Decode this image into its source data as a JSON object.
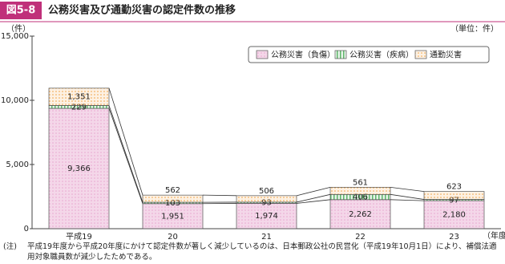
{
  "chart_data": {
    "type": "stacked_bar",
    "figure_label": "図5-8",
    "title": "公務災害及び通勤災害の認定件数の推移",
    "y_label": "（件）",
    "unit_label": "（単位：件）",
    "x_label": "（年度）",
    "categories": [
      "平成19",
      "20",
      "21",
      "22",
      "23"
    ],
    "series": [
      {
        "name": "公務災害（負傷）",
        "color": "#e8a6cf",
        "values": [
          9366,
          1951,
          1974,
          2262,
          2180
        ],
        "value_labels": [
          "9,366",
          "1,951",
          "1,974",
          "2,262",
          "2,180"
        ]
      },
      {
        "name": "公務災害（疾病）",
        "color": "#5fb56a",
        "values": [
          229,
          103,
          93,
          406,
          97
        ]
      },
      {
        "name": "通勤災害",
        "color": "#f0a040",
        "values": [
          1351,
          562,
          506,
          561,
          623
        ],
        "value_labels": [
          "1,351",
          "562",
          "506",
          "561",
          "623"
        ]
      }
    ],
    "ylim": [
      0,
      15000
    ],
    "yticks": [
      0,
      {
        "value": 5000,
        "label": "5,000"
      },
      {
        "value": 10000,
        "label": "10,000"
      },
      {
        "value": 15000,
        "label": "15,000"
      }
    ],
    "grid": false,
    "legend": "top-right",
    "note_label": "(注)",
    "note": "平成19年度から平成20年度にかけて認定件数が著しく減少しているのは、日本郵政公社の民営化（平成19年10月1日）により、補償法適用対象職員数が減少したためである。"
  }
}
